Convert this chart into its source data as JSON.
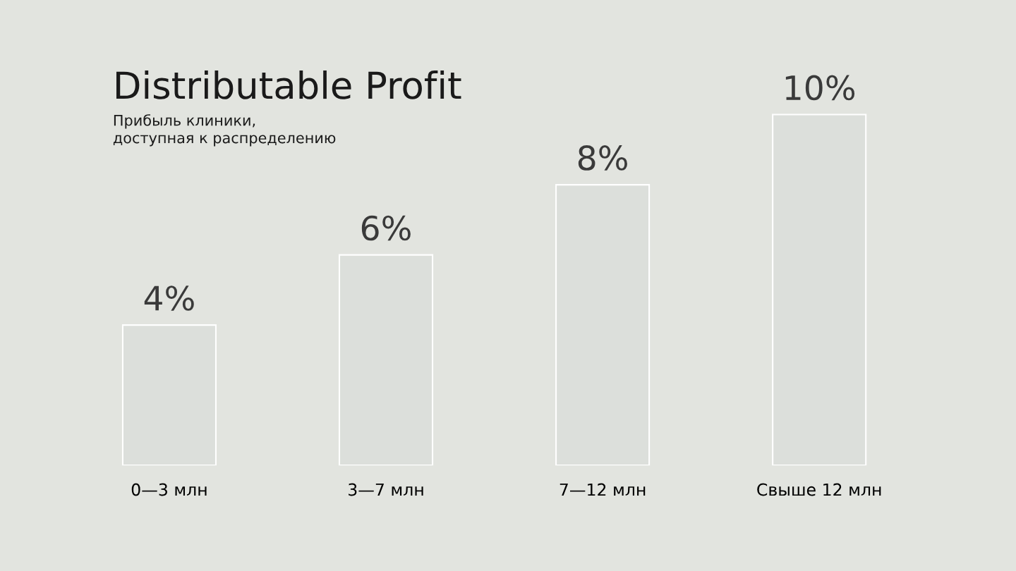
{
  "chart_data": {
    "type": "bar",
    "title": "Distributable Profit",
    "subtitle": "Прибыль клиники,\nдоступная к распределению",
    "categories": [
      "0—3 млн",
      "3—7 млн",
      "7—12 млн",
      "Свыше 12 млн"
    ],
    "values": [
      4,
      6,
      8,
      10
    ],
    "value_labels": [
      "4%",
      "6%",
      "8%",
      "10%"
    ],
    "color": "#dcdfdb",
    "tick_labels": "x"
  }
}
